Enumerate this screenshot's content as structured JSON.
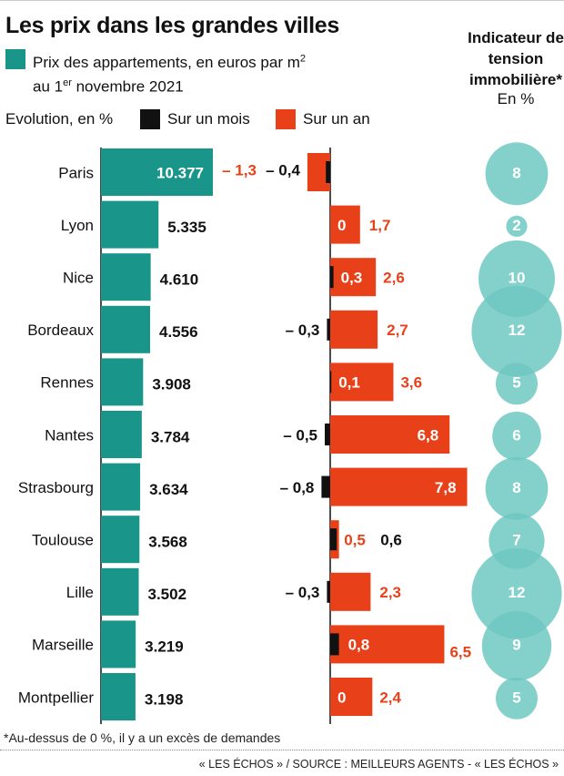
{
  "title": "Les prix dans les grandes villes",
  "legend": {
    "price_label_line1": "Prix des appartements, en euros par m²",
    "price_label_line2": "au 1er novembre 2021",
    "evolution_label": "Evolution, en %",
    "month_label": "Sur un mois",
    "year_label": "Sur un an"
  },
  "indicator": {
    "title": "Indicateur de tension immobilière*",
    "unit": "En %"
  },
  "colors": {
    "price": "#19958a",
    "month": "#111111",
    "year": "#e8411a",
    "bubble": "#6fc8c2"
  },
  "footnote": "*Au-dessus de 0 %, il y a un excès de demandes",
  "source": "« LES ÉCHOS » / SOURCE : MEILLEURS AGENTS - « LES ÉCHOS »",
  "chart_data": {
    "type": "bar",
    "categories": [
      "Paris",
      "Lyon",
      "Nice",
      "Bordeaux",
      "Rennes",
      "Nantes",
      "Strasbourg",
      "Toulouse",
      "Lille",
      "Marseille",
      "Montpellier"
    ],
    "series": [
      {
        "name": "Prix des appartements, en euros par m²",
        "values": [
          10377,
          5335,
          4610,
          4556,
          3908,
          3784,
          3634,
          3568,
          3502,
          3219,
          3198
        ],
        "labels": [
          "10.377",
          "5.335",
          "4.610",
          "4.556",
          "3.908",
          "3.784",
          "3.634",
          "3.568",
          "3.502",
          "3.219",
          "3.198"
        ]
      },
      {
        "name": "Sur un mois",
        "values": [
          -0.4,
          0,
          0.3,
          -0.3,
          0.1,
          -0.5,
          -0.8,
          0.6,
          -0.3,
          0.8,
          0
        ],
        "labels": [
          "– 0,4",
          "0",
          "0,3",
          "– 0,3",
          "0,1",
          "– 0,5",
          "– 0,8",
          "0,6",
          "– 0,3",
          "0,8",
          "0"
        ]
      },
      {
        "name": "Sur un an",
        "values": [
          -1.3,
          1.7,
          2.6,
          2.7,
          3.6,
          6.8,
          7.8,
          0.5,
          2.3,
          6.5,
          2.4
        ],
        "labels": [
          "– 1,3",
          "1,7",
          "2,6",
          "2,7",
          "3,6",
          "6,8",
          "7,8",
          "0,5",
          "2,3",
          "6,5",
          "2,4"
        ]
      },
      {
        "name": "Indicateur de tension immobilière",
        "values": [
          8,
          2,
          10,
          12,
          5,
          6,
          8,
          7,
          12,
          9,
          5
        ]
      }
    ]
  }
}
